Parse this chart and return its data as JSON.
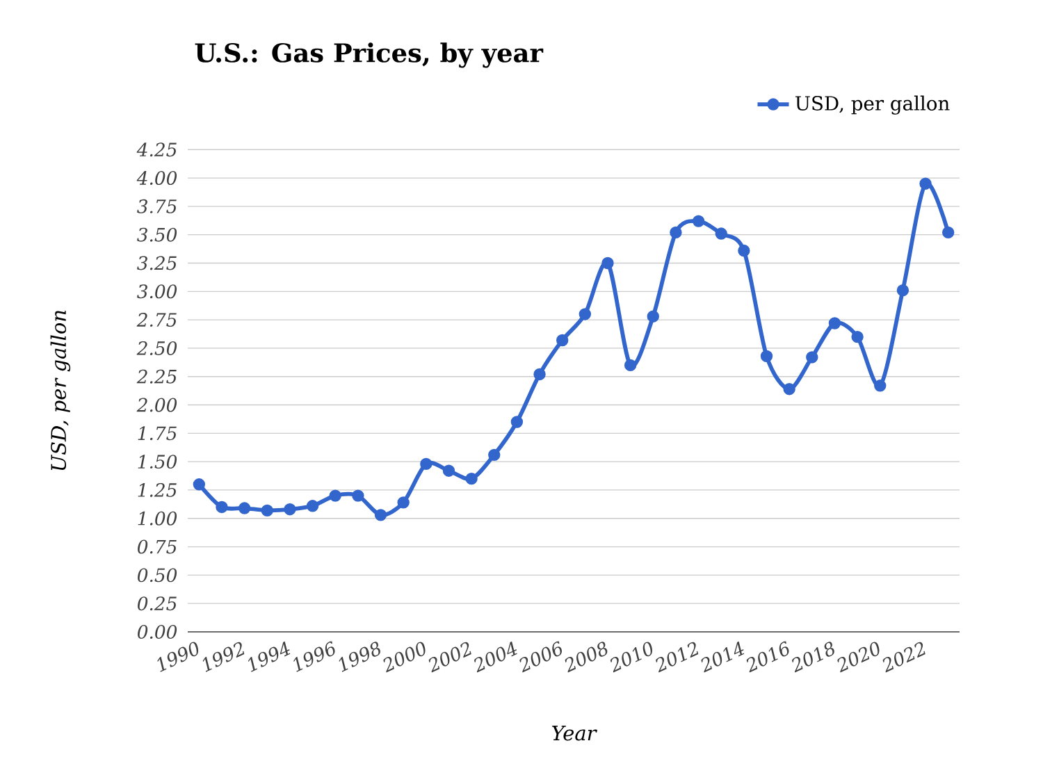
{
  "chart_data": {
    "type": "line",
    "title": "U.S.: Gas Prices, by year",
    "xlabel": "Year",
    "ylabel": "USD, per gallon",
    "x": [
      1990,
      1991,
      1992,
      1993,
      1994,
      1995,
      1996,
      1997,
      1998,
      1999,
      2000,
      2001,
      2002,
      2003,
      2004,
      2005,
      2006,
      2007,
      2008,
      2009,
      2010,
      2011,
      2012,
      2013,
      2014,
      2015,
      2016,
      2017,
      2018,
      2019,
      2020,
      2021,
      2022,
      2023
    ],
    "series": [
      {
        "name": "USD, per gallon",
        "color": "#3366cc",
        "values": [
          1.3,
          1.1,
          1.09,
          1.07,
          1.08,
          1.11,
          1.2,
          1.2,
          1.03,
          1.14,
          1.48,
          1.42,
          1.35,
          1.56,
          1.85,
          2.27,
          2.57,
          2.8,
          3.25,
          2.35,
          2.78,
          3.52,
          3.62,
          3.51,
          3.36,
          2.43,
          2.14,
          2.42,
          2.72,
          2.6,
          2.17,
          3.01,
          3.95,
          3.52
        ]
      }
    ],
    "xlim": [
      1989.5,
      2023.5
    ],
    "ylim": [
      0,
      4.25
    ],
    "xticks": [
      1990,
      1992,
      1994,
      1996,
      1998,
      2000,
      2002,
      2004,
      2006,
      2008,
      2010,
      2012,
      2014,
      2016,
      2018,
      2020,
      2022
    ],
    "yticks": [
      {
        "value": 0,
        "label": "0.00"
      },
      {
        "value": 0.25,
        "label": "0.25"
      },
      {
        "value": 0.5,
        "label": "0.50"
      },
      {
        "value": 0.75,
        "label": "0.75"
      },
      {
        "value": 1,
        "label": "1.00"
      },
      {
        "value": 1.25,
        "label": "1.25"
      },
      {
        "value": 1.5,
        "label": "1.50"
      },
      {
        "value": 1.75,
        "label": "1.75"
      },
      {
        "value": 2,
        "label": "2.00"
      },
      {
        "value": 2.25,
        "label": "2.25"
      },
      {
        "value": 2.5,
        "label": "2.50"
      },
      {
        "value": 2.75,
        "label": "2.75"
      },
      {
        "value": 3,
        "label": "3.00"
      },
      {
        "value": 3.25,
        "label": "3.25"
      },
      {
        "value": 3.5,
        "label": "3.50"
      },
      {
        "value": 3.75,
        "label": "3.75"
      },
      {
        "value": 4,
        "label": "4.00"
      },
      {
        "value": 4.25,
        "label": "4.25"
      }
    ],
    "grid": "y",
    "legend": "top right",
    "marker": "circle",
    "line_style": "solid"
  }
}
